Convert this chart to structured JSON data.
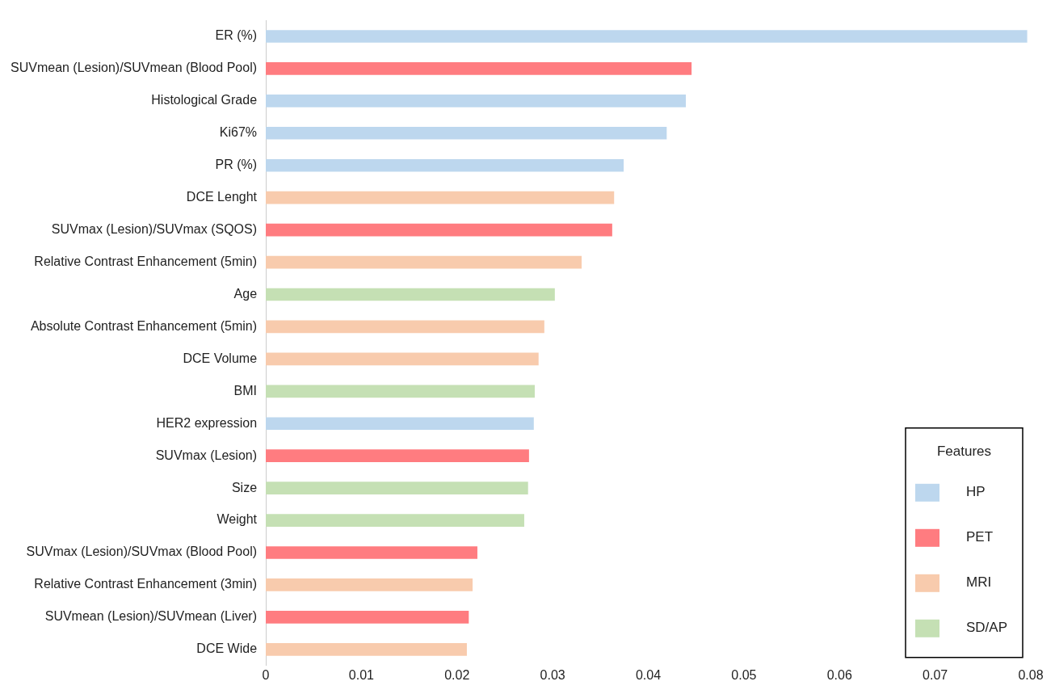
{
  "chart_data": {
    "type": "bar",
    "orientation": "horizontal",
    "categories": [
      "ER (%)",
      "SUVmean (Lesion)/SUVmean (Blood Pool)",
      "Histological Grade",
      "Ki67%",
      "PR (%)",
      "DCE Lenght",
      "SUVmax (Lesion)/SUVmax (SQOS)",
      "Relative Contrast Enhancement (5min)",
      "Age",
      "Absolute Contrast Enhancement (5min)",
      "DCE Volume",
      "BMI",
      "HER2 expression",
      "SUVmax (Lesion)",
      "Size",
      "Weight",
      "SUVmax (Lesion)/SUVmax (Blood Pool)",
      "Relative Contrast Enhancement (3min)",
      "SUVmean (Lesion)/SUVmean (Liver)",
      "DCE Wide"
    ],
    "series": [
      {
        "name": "HP",
        "color": "#bdd7ee",
        "values": [
          0.0796,
          null,
          0.0439,
          0.0419,
          0.0374,
          null,
          null,
          null,
          null,
          null,
          null,
          null,
          0.028,
          null,
          null,
          null,
          null,
          null,
          null,
          null
        ]
      },
      {
        "name": "PET",
        "color": "#ff7c80",
        "values": [
          null,
          0.0445,
          null,
          null,
          null,
          null,
          0.0362,
          null,
          null,
          null,
          null,
          null,
          null,
          0.0275,
          null,
          null,
          0.0221,
          null,
          0.0212,
          null
        ]
      },
      {
        "name": "MRI",
        "color": "#f8cbad",
        "values": [
          null,
          null,
          null,
          null,
          null,
          0.0364,
          null,
          0.033,
          null,
          0.0291,
          0.0285,
          null,
          null,
          null,
          null,
          null,
          null,
          0.0216,
          null,
          0.021
        ]
      },
      {
        "name": "SD/AP",
        "color": "#c5e0b4",
        "values": [
          null,
          null,
          null,
          null,
          null,
          null,
          null,
          null,
          0.0302,
          null,
          null,
          0.0281,
          null,
          null,
          0.0274,
          0.027,
          null,
          null,
          null,
          null
        ]
      }
    ],
    "xlim": [
      0,
      0.08
    ],
    "xticks": [
      0,
      0.01,
      0.02,
      0.03,
      0.04,
      0.05,
      0.06,
      0.07,
      0.08
    ],
    "grid": false,
    "legend": "bottom right",
    "legend_title": "Features"
  }
}
